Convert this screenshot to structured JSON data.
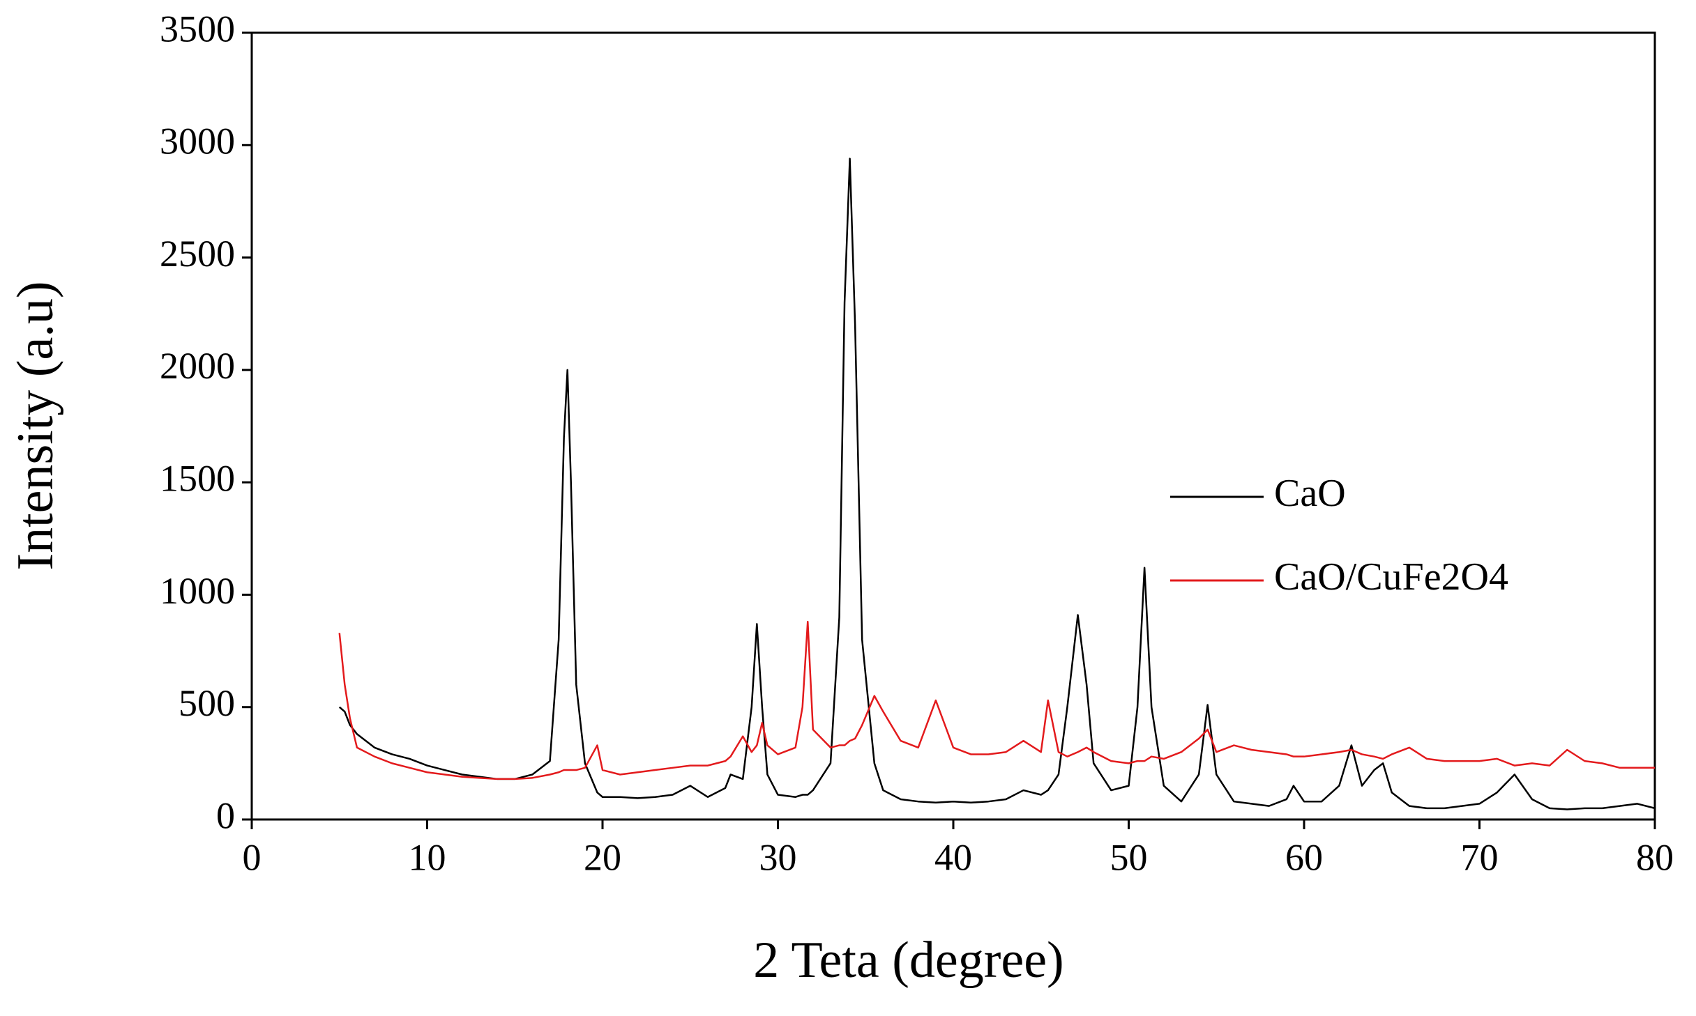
{
  "chart_data": {
    "type": "line",
    "xlabel": "2 Teta (degree)",
    "ylabel": "Intensity (a.u)",
    "x": [
      5,
      5.3,
      5.6,
      6,
      7,
      8,
      9,
      10,
      11,
      12,
      13,
      14,
      15,
      16,
      17,
      17.5,
      17.8,
      18,
      18.2,
      18.5,
      19,
      19.7,
      20,
      21,
      22,
      23,
      24,
      25,
      26,
      27,
      27.3,
      28,
      28.5,
      28.8,
      29.1,
      29.4,
      30,
      31,
      31.4,
      31.7,
      32,
      33,
      33.5,
      33.8,
      34.1,
      34.4,
      34.8,
      35.5,
      36,
      37,
      38,
      39,
      40,
      41,
      42,
      43,
      44,
      45,
      45.4,
      46,
      46.5,
      47.1,
      47.6,
      48,
      49,
      50,
      50.5,
      50.9,
      51.3,
      52,
      53,
      54,
      54.5,
      55,
      56,
      57,
      58,
      59,
      59.4,
      60,
      61,
      62,
      62.7,
      63.3,
      64,
      64.5,
      65,
      66,
      67,
      68,
      69,
      70,
      71,
      72,
      73,
      74,
      75,
      76,
      77,
      78,
      79,
      80
    ],
    "series": [
      {
        "name": "CaO",
        "color": "#000000",
        "values": [
          500,
          480,
          420,
          380,
          320,
          290,
          270,
          240,
          220,
          200,
          190,
          180,
          180,
          200,
          260,
          800,
          1700,
          2000,
          1500,
          600,
          250,
          120,
          100,
          100,
          95,
          100,
          110,
          150,
          100,
          140,
          200,
          180,
          500,
          870,
          500,
          200,
          110,
          100,
          110,
          110,
          130,
          250,
          900,
          2300,
          2940,
          2200,
          800,
          250,
          130,
          90,
          80,
          75,
          80,
          75,
          80,
          90,
          130,
          110,
          130,
          200,
          500,
          910,
          600,
          250,
          130,
          150,
          500,
          1120,
          500,
          150,
          80,
          200,
          510,
          200,
          80,
          70,
          60,
          90,
          150,
          80,
          80,
          150,
          330,
          150,
          220,
          250,
          120,
          60,
          50,
          50,
          60,
          70,
          120,
          200,
          90,
          50,
          45,
          50,
          50,
          60,
          70,
          50
        ]
      },
      {
        "name": "CaO/CuFe2O4",
        "color": "#e31a1c",
        "values": [
          830,
          600,
          450,
          320,
          280,
          250,
          230,
          210,
          200,
          190,
          185,
          180,
          180,
          185,
          200,
          210,
          220,
          220,
          220,
          220,
          230,
          330,
          220,
          200,
          210,
          220,
          230,
          240,
          240,
          260,
          280,
          370,
          300,
          330,
          430,
          330,
          290,
          320,
          500,
          880,
          400,
          320,
          330,
          330,
          350,
          360,
          420,
          550,
          480,
          350,
          320,
          530,
          320,
          290,
          290,
          300,
          350,
          300,
          530,
          300,
          280,
          300,
          320,
          300,
          260,
          250,
          260,
          260,
          280,
          270,
          300,
          360,
          400,
          300,
          330,
          310,
          300,
          290,
          280,
          280,
          290,
          300,
          310,
          290,
          280,
          270,
          290,
          320,
          270,
          260,
          260,
          260,
          270,
          240,
          250,
          240,
          310,
          260,
          250,
          230,
          230,
          230
        ]
      }
    ],
    "xlim": [
      0,
      80
    ],
    "xticks": [
      0,
      10,
      20,
      30,
      40,
      50,
      60,
      70,
      80
    ],
    "ylim": [
      0,
      3500
    ],
    "yticks": [
      0,
      500,
      1000,
      1500,
      2000,
      2500,
      3000,
      3500
    ],
    "grid": false,
    "legend": "right"
  }
}
